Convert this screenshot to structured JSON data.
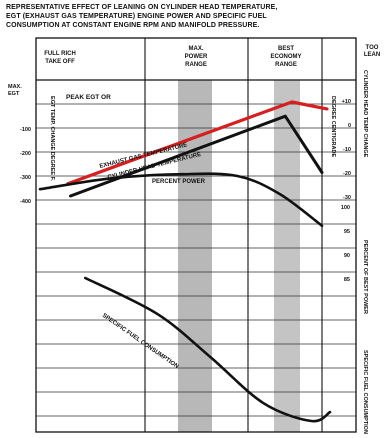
{
  "caption": [
    "REPRESENTATIVE EFFECT OF LEANING ON CYLINDER HEAD TEMPERATURE,",
    "EGT (EXHAUST GAS TEMPERATURE) ENGINE POWER AND SPECIFIC FUEL",
    "CONSUMPTION AT CONSTANT ENGINE RPM AND MANIFOLD PRESSURE."
  ],
  "headers": {
    "full_rich": [
      "FULL RICH",
      "TAKE OFF"
    ],
    "max_power": [
      "MAX.",
      "POWER",
      "RANGE"
    ],
    "best_economy": [
      "BEST",
      "ECONOMY",
      "RANGE"
    ],
    "too_lean": [
      "TOO",
      "LEAN"
    ]
  },
  "left_axis": {
    "top_label": [
      "MAX.",
      "EGT"
    ],
    "title": "EGT TEMP. CHANGE DEGREE F.",
    "ticks": [
      "-100",
      "-200",
      "-300",
      "-400"
    ]
  },
  "right_axis_temp": {
    "title": "DEGREE CENTIGRADE",
    "ticks": [
      "+10",
      "0",
      "-10",
      "-20",
      "-30"
    ]
  },
  "right_axis_power": {
    "ticks": [
      "100",
      "95",
      "90",
      "85"
    ]
  },
  "side_labels": {
    "cht": "CYLINDER HEAD TEMP CHANGE",
    "power": "PERCENT OF BEST POWER",
    "fuel": "SPECIFIC FUEL CONSUMPTION"
  },
  "annotations": {
    "peak_egt": "PEAK EGT OR",
    "egt": "EXHAUST GAS TEMPERATURE",
    "cht": "CYLINDER HEAD TEMPERATURE",
    "power": "PERCENT POWER",
    "sfc": "SPECIFIC FUEL CONSUMPTION"
  },
  "chart_data": {
    "type": "line",
    "note": "Qualitative curves vs. mixture setting (rich to lean).",
    "series": [
      {
        "name": "EXHAUST GAS TEMPERATURE",
        "color": "#d42020",
        "points": [
          [
            0.04,
            0.05
          ],
          [
            0.87,
            1.0
          ],
          [
            1.0,
            0.92
          ]
        ]
      },
      {
        "name": "CYLINDER HEAD TEMPERATURE",
        "color": "#111111",
        "points": [
          [
            0.04,
            0.0
          ],
          [
            0.86,
            0.95
          ],
          [
            1.0,
            0.28
          ]
        ]
      },
      {
        "name": "PERCENT POWER",
        "color": "#111111",
        "points": [
          [
            0.0,
            0.68
          ],
          [
            0.25,
            0.86
          ],
          [
            0.5,
            0.93
          ],
          [
            0.7,
            0.9
          ],
          [
            0.85,
            0.6
          ],
          [
            1.0,
            0.07
          ]
        ]
      },
      {
        "name": "SPECIFIC FUEL CONSUMPTION",
        "color": "#111111",
        "points": [
          [
            0.08,
            1.0
          ],
          [
            0.35,
            0.76
          ],
          [
            0.55,
            0.47
          ],
          [
            0.75,
            0.16
          ],
          [
            0.93,
            0.04
          ],
          [
            1.0,
            0.1
          ]
        ]
      }
    ],
    "bands": [
      {
        "name": "MAX. POWER RANGE",
        "color": "#b8b8b8"
      },
      {
        "name": "BEST ECONOMY RANGE",
        "color": "#c4c4c4"
      }
    ]
  }
}
